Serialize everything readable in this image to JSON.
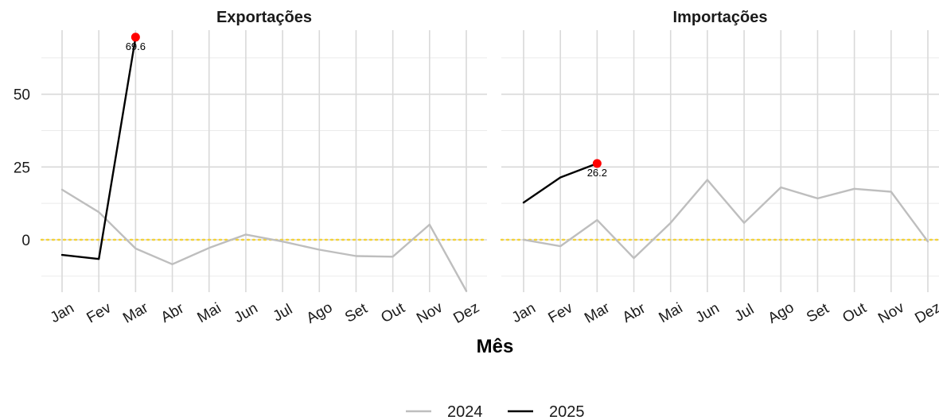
{
  "chart_data": {
    "type": "line",
    "x": [
      "Jan",
      "Fev",
      "Mar",
      "Abr",
      "Mai",
      "Jun",
      "Jul",
      "Ago",
      "Set",
      "Out",
      "Nov",
      "Dez"
    ],
    "xlabel": "Mês",
    "ylabel": "",
    "ylim": [
      -18,
      72
    ],
    "yticks": [
      0,
      25,
      50
    ],
    "grid": true,
    "legend_position": "bottom",
    "zero_line": {
      "value": 0,
      "color": "#F2D23A",
      "style": "dotted"
    },
    "series_colors": {
      "2024": "#BEBEBE",
      "2025": "#000000"
    },
    "highlight_color": "#FF0000",
    "legend": [
      {
        "name": "2024",
        "color": "#BEBEBE"
      },
      {
        "name": "2025",
        "color": "#000000"
      }
    ],
    "panels": [
      {
        "title": "Exportações",
        "series": [
          {
            "name": "2024",
            "values": [
              17.2,
              9.5,
              -3.0,
              -8.4,
              -2.8,
              1.8,
              -0.6,
              -3.4,
              -5.6,
              -5.8,
              5.2,
              -17.6
            ]
          },
          {
            "name": "2025",
            "values": [
              -5.2,
              -6.6,
              69.6
            ]
          }
        ],
        "highlight": {
          "index": 2,
          "value": 69.6,
          "label": "69.6"
        }
      },
      {
        "title": "Importações",
        "series": [
          {
            "name": "2024",
            "values": [
              0.0,
              -2.2,
              6.8,
              -6.3,
              5.8,
              20.6,
              5.8,
              18.0,
              14.2,
              17.5,
              16.5,
              -0.6
            ]
          },
          {
            "name": "2025",
            "values": [
              12.8,
              21.4,
              26.2
            ]
          }
        ],
        "highlight": {
          "index": 2,
          "value": 26.2,
          "label": "26.2"
        }
      }
    ]
  }
}
